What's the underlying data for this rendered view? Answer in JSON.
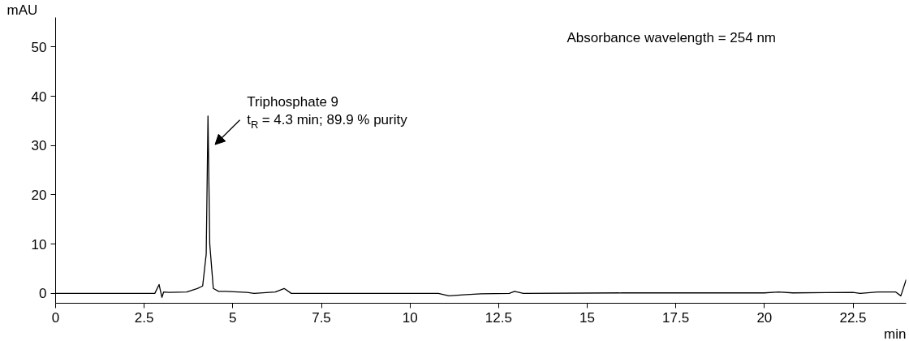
{
  "chart_data": {
    "type": "line",
    "xlabel": "min",
    "ylabel": "mAU",
    "x": [
      0,
      2.8,
      2.92,
      2.96,
      3.0,
      3.05,
      3.2,
      3.7,
      4.0,
      4.15,
      4.25,
      4.3,
      4.35,
      4.45,
      4.6,
      4.8,
      5.4,
      5.6,
      6.2,
      6.45,
      6.65,
      10.8,
      11.1,
      11.5,
      12.0,
      12.8,
      12.95,
      13.2,
      16.0,
      20.0,
      20.4,
      20.8,
      22.5,
      22.7,
      23.2,
      23.7,
      23.85,
      24.0
    ],
    "values": [
      0,
      0,
      1.8,
      0.5,
      -0.8,
      0.3,
      0.2,
      0.3,
      1.0,
      1.5,
      8,
      36,
      10,
      1.0,
      0.4,
      0.4,
      0.2,
      0,
      0.3,
      1.0,
      0,
      0,
      -0.5,
      -0.3,
      -0.1,
      0,
      0.4,
      0,
      0.1,
      0.1,
      0.3,
      0.1,
      0.2,
      0,
      0.3,
      0.3,
      -0.5,
      2.8
    ],
    "color": "#000000",
    "xlim": [
      0,
      24
    ],
    "ylim": [
      -2,
      56
    ],
    "xticks": [
      0,
      2.5,
      5,
      7.5,
      10,
      12.5,
      15,
      17.5,
      20,
      22.5
    ],
    "yticks": [
      0,
      10,
      20,
      30,
      40,
      50
    ],
    "grid": false,
    "marker": "none",
    "line_style": "solid",
    "annotations": [
      {
        "text": "Triphosphate 9\nt$_{R}$ = 4.3 min; 89.9 % purity",
        "x": 4.3,
        "y": 36
      },
      "Absorbance wavelength = 254 nm"
    ]
  }
}
